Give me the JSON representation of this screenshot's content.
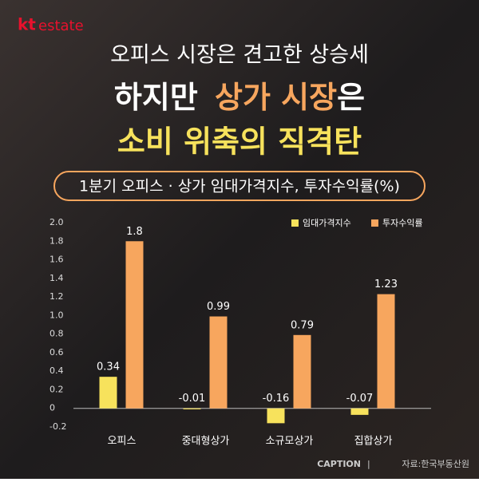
{
  "brand": {
    "kt": "kt",
    "name": "estate"
  },
  "heading": {
    "line1": "오피스 시장은 견고한 상승세",
    "line2": [
      "하지만",
      "상가 시장",
      "은"
    ],
    "line3": "소비 위축의 직격탄"
  },
  "chart_data": {
    "type": "bar",
    "title": "1분기 오피스 · 상가 임대가격지수, 투자수익률(%)",
    "categories": [
      "오피스",
      "중대형상가",
      "소규모상가",
      "집합상가"
    ],
    "series": [
      {
        "name": "임대가격지수",
        "color": "#f7e25c",
        "values": [
          0.34,
          -0.01,
          -0.16,
          -0.07
        ]
      },
      {
        "name": "투자수익률",
        "color": "#f7a65e",
        "values": [
          1.8,
          0.99,
          0.79,
          1.23
        ]
      }
    ],
    "ylim": [
      -0.2,
      2.0
    ],
    "yticks": [
      -0.2,
      0,
      0.2,
      0.4,
      0.6,
      0.8,
      {
        "value": 1,
        "label": "1.0"
      },
      1.2,
      1.4,
      1.6,
      1.8,
      {
        "value": 2,
        "label": "2.0"
      }
    ],
    "legend": "top-right",
    "grid": false
  },
  "footer": {
    "caption": "CAPTION",
    "source": "자료:한국부동산원"
  }
}
